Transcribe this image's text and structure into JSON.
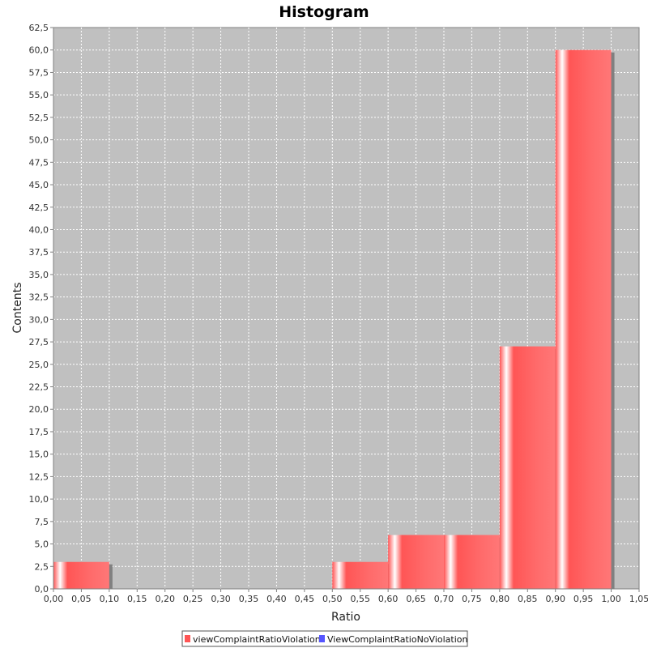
{
  "chart_data": {
    "type": "bar",
    "title": "Histogram",
    "xlabel": "Ratio",
    "ylabel": "Contents",
    "xlim": [
      0.0,
      1.05
    ],
    "ylim": [
      0.0,
      62.5
    ],
    "x_tick_step": 0.05,
    "y_tick_step": 2.5,
    "decimal_separator": ",",
    "grid": true,
    "legend_position": "bottom",
    "series": [
      {
        "name": "viewComplaintRatioViolation",
        "color": "#ff5555",
        "bins": [
          {
            "x0": 0.0,
            "x1": 0.1,
            "value": 3
          },
          {
            "x0": 0.5,
            "x1": 0.6,
            "value": 3
          },
          {
            "x0": 0.6,
            "x1": 0.7,
            "value": 6
          },
          {
            "x0": 0.7,
            "x1": 0.8,
            "value": 6
          },
          {
            "x0": 0.8,
            "x1": 0.9,
            "value": 27
          },
          {
            "x0": 0.9,
            "x1": 1.0,
            "value": 60
          }
        ]
      },
      {
        "name": "ViewComplaintRatioNoViolation",
        "color": "#5555ff",
        "bins": []
      }
    ],
    "plot_background": "#c0c0c0"
  }
}
